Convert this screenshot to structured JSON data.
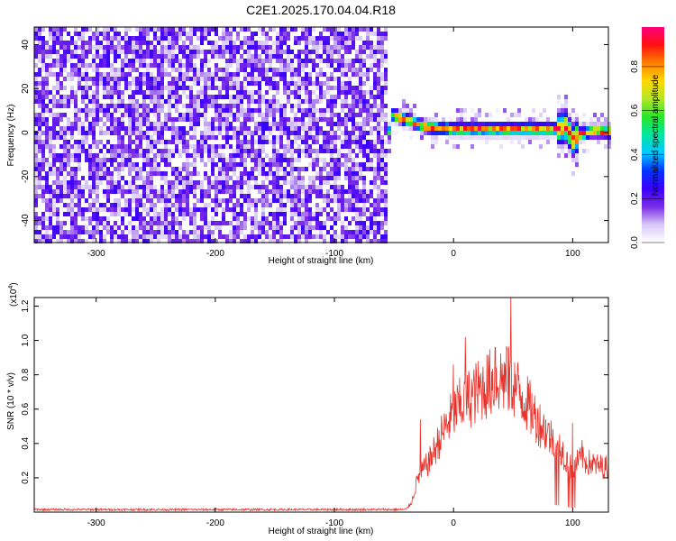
{
  "title": "C2E1.2025.170.04.04.R18",
  "chart_data": [
    {
      "type": "heatmap",
      "xlabel": "Height of straight line (km)",
      "ylabel": "Frequency (Hz)",
      "xlim": [
        -352,
        130
      ],
      "ylim": [
        -50,
        48
      ],
      "xticks": [
        -300,
        -200,
        -100,
        0,
        100
      ],
      "xtick_labels": [
        "-300",
        "-200",
        "-100",
        "0",
        "100"
      ],
      "yticks": [
        -40,
        -20,
        0,
        20,
        40
      ],
      "ytick_labels": [
        "-40",
        "-20",
        "0",
        "20",
        "40"
      ],
      "colorbar": {
        "label": "Normalized spectral amplitude",
        "range": [
          0,
          0.98
        ],
        "ticks": [
          0.0,
          0.2,
          0.4,
          0.6,
          0.8
        ],
        "tick_labels": [
          "0.0",
          "0.2",
          "0.4",
          "0.6",
          "0.8"
        ],
        "colormap": [
          "#ffffff",
          "#d7c8f5",
          "#7a2ae6",
          "#3a00ff",
          "#0033ff",
          "#00c8ff",
          "#00e6a0",
          "#28e628",
          "#b4e628",
          "#ffd700",
          "#ff8000",
          "#ff1010",
          "#ff007f"
        ]
      },
      "regions": [
        {
          "name": "noise",
          "x_range": [
            -352,
            -55
          ],
          "y_range": [
            -50,
            48
          ],
          "amplitude": [
            0.05,
            0.25
          ]
        },
        {
          "name": "signal",
          "x_range": [
            -55,
            130
          ],
          "center_freq": [
            {
              "x": -52,
              "y": 8
            },
            {
              "x": -45,
              "y": 7
            },
            {
              "x": -35,
              "y": 5
            },
            {
              "x": -25,
              "y": 3
            },
            {
              "x": -15,
              "y": 2
            },
            {
              "x": 0,
              "y": 1.5
            },
            {
              "x": 20,
              "y": 1.5
            },
            {
              "x": 40,
              "y": 1.5
            },
            {
              "x": 60,
              "y": 1.5
            },
            {
              "x": 80,
              "y": 1.5
            },
            {
              "x": 90,
              "y": 2
            },
            {
              "x": 95,
              "y": 3
            },
            {
              "x": 100,
              "y": -4
            },
            {
              "x": 105,
              "y": -1
            },
            {
              "x": 115,
              "y": 0.5
            },
            {
              "x": 130,
              "y": 0.5
            }
          ],
          "peak_amplitude": 0.98
        }
      ]
    },
    {
      "type": "line",
      "xlabel": "Height of straight line (km)",
      "ylabel": "SNR (10 * v/v)",
      "exponent_label": "(x10",
      "exponent_sup": "4",
      "exponent_close": ")",
      "xlim": [
        -352,
        130
      ],
      "ylim": [
        0,
        12500
      ],
      "xticks": [
        -300,
        -200,
        -100,
        0,
        100
      ],
      "xtick_labels": [
        "-300",
        "-200",
        "-100",
        "0",
        "100"
      ],
      "yticks": [
        2000,
        4000,
        6000,
        8000,
        10000,
        12000
      ],
      "ytick_labels": [
        "0.2",
        "0.4",
        "0.6",
        "0.8",
        "1.0",
        "1.2"
      ],
      "color": "#e8322a",
      "envelope": [
        {
          "x": -352,
          "y": 150
        },
        {
          "x": -40,
          "y": 150
        },
        {
          "x": -35,
          "y": 600
        },
        {
          "x": -30,
          "y": 2000
        },
        {
          "x": -20,
          "y": 3000
        },
        {
          "x": -10,
          "y": 4500
        },
        {
          "x": 0,
          "y": 5800
        },
        {
          "x": 10,
          "y": 6500
        },
        {
          "x": 20,
          "y": 7000
        },
        {
          "x": 30,
          "y": 7500
        },
        {
          "x": 40,
          "y": 7800
        },
        {
          "x": 50,
          "y": 7500
        },
        {
          "x": 60,
          "y": 6500
        },
        {
          "x": 70,
          "y": 5400
        },
        {
          "x": 80,
          "y": 4500
        },
        {
          "x": 90,
          "y": 3800
        },
        {
          "x": 95,
          "y": 3000
        },
        {
          "x": 100,
          "y": 2500
        },
        {
          "x": 105,
          "y": 3000
        },
        {
          "x": 110,
          "y": 3000
        },
        {
          "x": 120,
          "y": 2700
        },
        {
          "x": 130,
          "y": 2600
        }
      ],
      "peaks": [
        {
          "x": -28,
          "y": 5400
        },
        {
          "x": 0,
          "y": 8600
        },
        {
          "x": 10,
          "y": 10200
        },
        {
          "x": 35,
          "y": 9600
        },
        {
          "x": 45,
          "y": 9500
        },
        {
          "x": 48,
          "y": 12500
        },
        {
          "x": 100,
          "y": 5200
        },
        {
          "x": 108,
          "y": 4200
        }
      ]
    }
  ]
}
